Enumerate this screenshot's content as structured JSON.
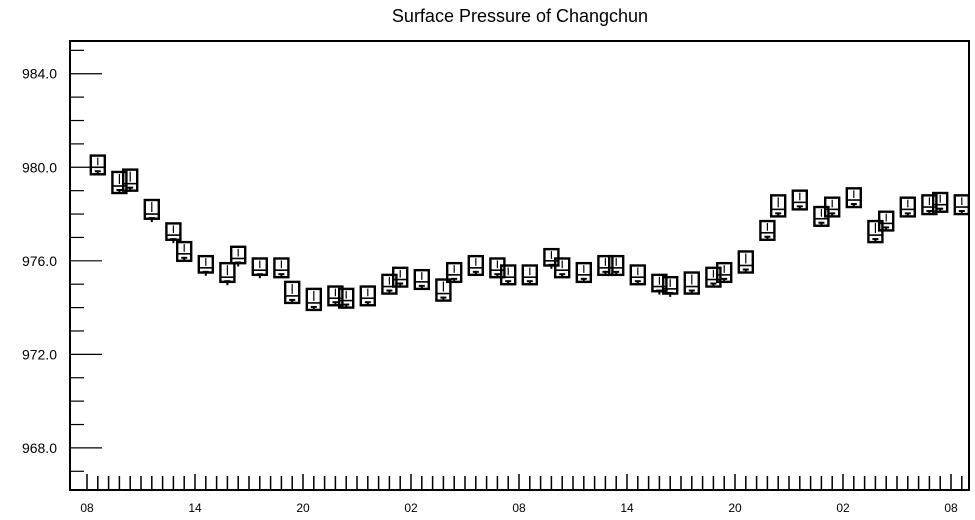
{
  "chart_data": {
    "type": "box",
    "title": "Surface Pressure of Changchun",
    "xlabel": "",
    "ylabel": "",
    "ylim": [
      966.2,
      985.4
    ],
    "yticks": [
      968.0,
      972.0,
      976.0,
      980.0,
      984.0
    ],
    "ytick_labels": [
      "968.0",
      "972.0",
      "976.0",
      "980.0",
      "984.0"
    ],
    "x_steps": 82,
    "xticks": [
      0,
      10,
      20,
      30,
      40,
      50,
      60,
      70,
      80
    ],
    "xtick_labels": [
      "08",
      "14",
      "20",
      "02",
      "08",
      "14",
      "20",
      "02",
      "08"
    ],
    "grid": false,
    "series": [
      {
        "center": [
          980.0,
          979.2,
          979.3,
          978.0,
          977.1,
          976.3,
          975.7,
          975.3,
          976.1,
          975.6,
          975.6,
          974.5,
          974.2,
          974.4,
          974.3,
          974.4,
          974.9,
          975.2,
          975.1,
          974.6,
          975.4,
          975.7,
          975.6,
          975.3,
          975.3,
          976.0,
          975.6,
          975.4,
          975.7,
          975.7,
          975.3,
          974.9,
          974.8,
          974.9,
          975.2,
          975.4,
          975.8,
          977.2,
          978.2,
          978.5,
          977.8,
          978.2,
          978.6,
          977.1,
          977.6,
          978.2,
          978.3,
          978.4,
          978.3
        ],
        "low": [
          979.7,
          978.9,
          979.0,
          977.8,
          976.9,
          976.0,
          975.5,
          975.1,
          975.9,
          975.4,
          975.3,
          974.2,
          973.9,
          974.1,
          974.0,
          974.1,
          974.6,
          974.9,
          974.8,
          974.3,
          975.1,
          975.4,
          975.3,
          975.0,
          975.0,
          975.8,
          975.3,
          975.1,
          975.4,
          975.4,
          975.0,
          974.7,
          974.6,
          974.6,
          974.9,
          975.1,
          975.5,
          976.9,
          977.9,
          978.2,
          977.5,
          977.9,
          978.3,
          976.8,
          977.3,
          977.9,
          978.0,
          978.1,
          978.0
        ],
        "high": [
          980.5,
          979.8,
          979.9,
          978.6,
          977.6,
          976.8,
          976.2,
          975.9,
          976.6,
          976.1,
          976.1,
          975.1,
          974.8,
          974.9,
          974.8,
          974.9,
          975.4,
          975.7,
          975.6,
          975.2,
          975.9,
          976.2,
          976.1,
          975.8,
          975.8,
          976.5,
          976.1,
          975.9,
          976.2,
          976.2,
          975.8,
          975.4,
          975.3,
          975.5,
          975.7,
          975.9,
          976.4,
          977.7,
          978.8,
          979.0,
          978.3,
          978.7,
          979.1,
          977.7,
          978.1,
          978.7,
          978.8,
          978.9,
          978.8
        ]
      }
    ]
  }
}
